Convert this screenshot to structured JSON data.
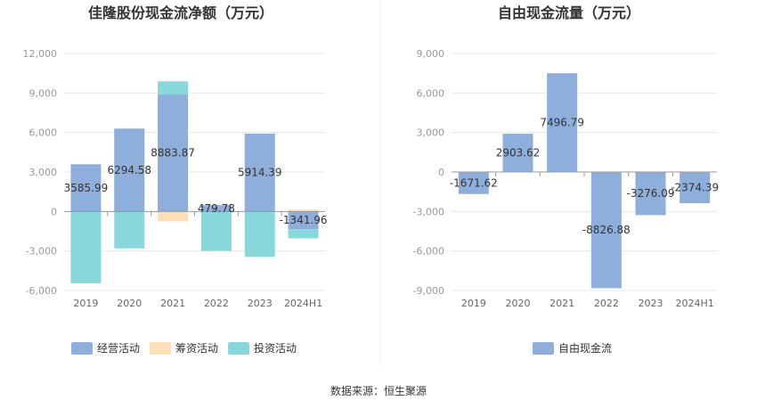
{
  "source": "数据来源：恒生聚源",
  "chart_data": [
    {
      "type": "bar",
      "stacked": true,
      "title": "佳隆股份现金流净额（万元）",
      "categories": [
        "2019",
        "2020",
        "2021",
        "2022",
        "2023",
        "2024H1"
      ],
      "ylim": [
        -6000,
        12000
      ],
      "yticks": [
        -6000,
        -3000,
        0,
        3000,
        6000,
        9000,
        12000
      ],
      "ytick_labels": [
        "-6,000",
        "-3,000",
        "0",
        "3,000",
        "6,000",
        "9,000",
        "12,000"
      ],
      "series": [
        {
          "name": "经营活动",
          "color": "#8eaedb",
          "values": [
            3585.99,
            6294.58,
            8883.87,
            479.78,
            5914.39,
            -1341.96
          ],
          "labels": [
            "3585.99",
            "6294.58",
            "8883.87",
            "479.78",
            "5914.39",
            "-1341.96"
          ]
        },
        {
          "name": "筹资活动",
          "color": "#fde0b5",
          "values": [
            0,
            0,
            -750,
            0,
            0,
            150
          ]
        },
        {
          "name": "投资活动",
          "color": "#88d8db",
          "values": [
            -5450,
            -2800,
            1000,
            -3000,
            -3450,
            -700
          ]
        }
      ]
    },
    {
      "type": "bar",
      "title": "自由现金流量（万元）",
      "categories": [
        "2019",
        "2020",
        "2021",
        "2022",
        "2023",
        "2024H1"
      ],
      "ylim": [
        -9000,
        9000
      ],
      "yticks": [
        -9000,
        -6000,
        -3000,
        0,
        3000,
        6000,
        9000
      ],
      "ytick_labels": [
        "-9,000",
        "-6,000",
        "-3,000",
        "0",
        "3,000",
        "6,000",
        "9,000"
      ],
      "series": [
        {
          "name": "自由现金流",
          "color": "#8eaedb",
          "values": [
            -1671.62,
            2903.62,
            7496.79,
            -8826.88,
            -3276.09,
            -2374.39
          ],
          "labels": [
            "-1671.62",
            "2903.62",
            "7496.79",
            "-8826.88",
            "-3276.09",
            "-2374.39"
          ]
        }
      ]
    }
  ]
}
